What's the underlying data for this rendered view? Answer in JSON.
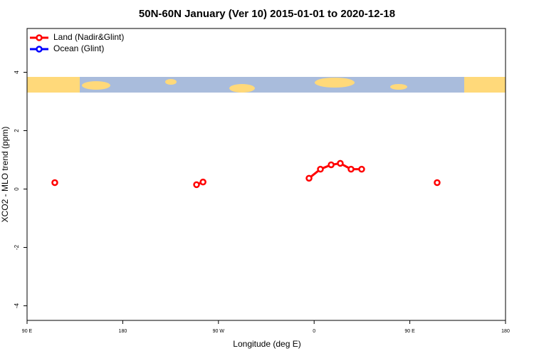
{
  "chart_data": {
    "type": "line",
    "title": "50N-60N January (Ver 10)   2015-01-01 to 2020-12-18",
    "x_label": "Longitude (deg E)",
    "y_label": "XCO2 - MLO trend (ppm)",
    "xlim": [
      90,
      540
    ],
    "xticks": [
      {
        "value": 90,
        "label": "90 E"
      },
      180,
      {
        "value": 270,
        "label": "90 W"
      },
      {
        "value": 360,
        "label": "0"
      },
      {
        "value": 450,
        "label": "90 E"
      },
      {
        "value": 540,
        "label": "180"
      }
    ],
    "ylim": [
      -4.5,
      5.5
    ],
    "yticks": [
      -4,
      -2,
      0,
      2,
      4
    ],
    "legend": "top-left",
    "series": [
      {
        "name": "Land (Nadir&Glint)",
        "color": "#ff0000",
        "x": [
          116.1,
          249.4,
          255.5,
          355.2,
          365.9,
          376.0,
          384.6,
          394.7,
          404.7,
          475.7
        ],
        "values": [
          0.22,
          0.15,
          0.24,
          0.37,
          0.68,
          0.83,
          0.88,
          0.68,
          0.68,
          0.22
        ]
      },
      {
        "name": "Ocean (Glint)",
        "color": "#0000ff",
        "x": [],
        "values": []
      }
    ]
  }
}
